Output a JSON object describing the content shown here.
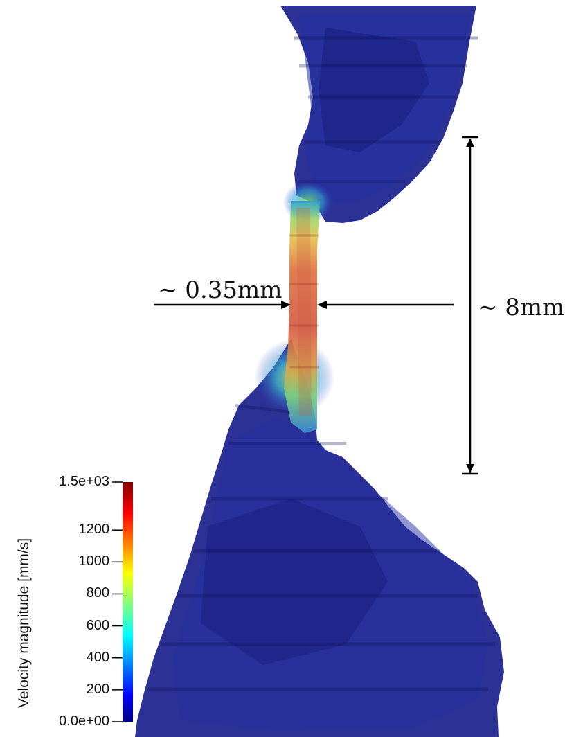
{
  "figure": {
    "subject": "CFD rendering of airway stenosis with velocity field",
    "colors": {
      "tissue_dark": "#12167a",
      "tissue_mid": "#1d2a9c",
      "tissue_light": "#3a47b8",
      "jet_core": "#d9583c",
      "jet_edge": "#e8c250",
      "background": "#ffffff"
    }
  },
  "annotations": {
    "width_label": "∼ 0.35mm",
    "length_label": "∼ 8mm"
  },
  "colorbar": {
    "title": "Velocity magnitude [mm/s]",
    "colormap": "jet",
    "min_label": "0.0e+00",
    "max_label": "1.5e+03",
    "min": 0,
    "max": 1500,
    "ticks": [
      {
        "value": 1500,
        "label": "1.5e+03"
      },
      {
        "value": 1200,
        "label": "1200"
      },
      {
        "value": 1000,
        "label": "1000"
      },
      {
        "value": 800,
        "label": "800"
      },
      {
        "value": 600,
        "label": "600"
      },
      {
        "value": 400,
        "label": "400"
      },
      {
        "value": 200,
        "label": "200"
      },
      {
        "value": 0,
        "label": "0.0e+00"
      }
    ]
  }
}
